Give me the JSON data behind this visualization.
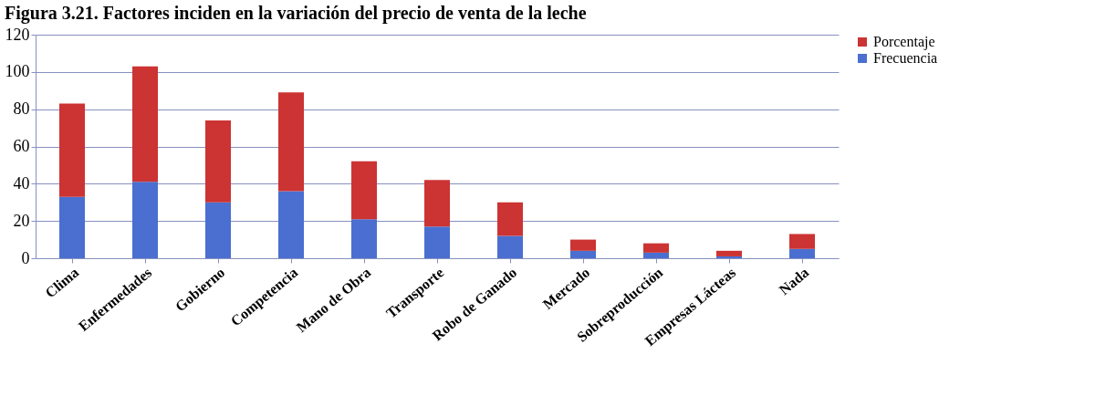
{
  "chart_data": {
    "type": "bar",
    "title": "Figura 3.21. Factores inciden en la variación del precio de venta de la leche",
    "categories": [
      "Clima",
      "Enfermedades",
      "Gobierno",
      "Competencia",
      "Mano de Obra",
      "Transporte",
      "Robo de Ganado",
      "Mercado",
      "Sobreproducción",
      "Empresas Lácteas",
      "Nada"
    ],
    "stacked": true,
    "series": [
      {
        "name": "Frecuencia",
        "color": "#4a6fd0",
        "values": [
          33,
          41,
          30,
          36,
          21,
          17,
          12,
          4,
          3,
          1,
          5
        ]
      },
      {
        "name": "Porcentaje",
        "color": "#cc3333",
        "values": [
          50,
          62,
          44,
          53,
          31,
          25,
          18,
          6,
          5,
          3,
          8
        ]
      }
    ],
    "ylim": [
      0,
      120
    ],
    "yticks": [
      0,
      20,
      40,
      60,
      80,
      100,
      120
    ],
    "grid": "y",
    "legend": "right"
  }
}
